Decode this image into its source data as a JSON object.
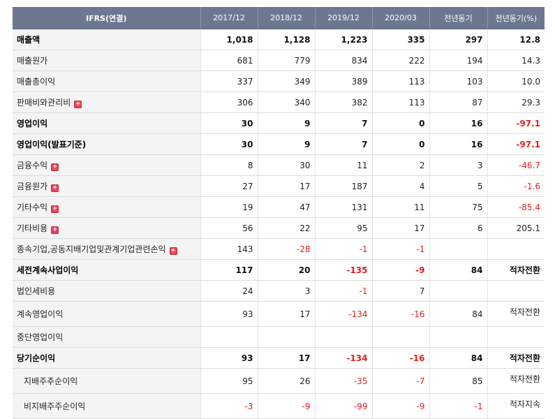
{
  "table": {
    "headers": [
      "IFRS(연결)",
      "2017/12",
      "2018/12",
      "2019/12",
      "2020/03",
      "전년동기",
      "전년동기(%)"
    ],
    "rows": [
      {
        "label": "매출액",
        "values": [
          "1,018",
          "1,128",
          "1,223",
          "335",
          "297",
          "12.8"
        ]
      },
      {
        "label": "매출원가",
        "values": [
          "681",
          "779",
          "834",
          "222",
          "194",
          "14.3"
        ]
      },
      {
        "label": "매출총이익",
        "values": [
          "337",
          "349",
          "389",
          "113",
          "103",
          "10.0"
        ]
      },
      {
        "label": "판매비와관리비",
        "values": [
          "306",
          "340",
          "382",
          "113",
          "87",
          "29.3"
        ]
      },
      {
        "label": "영업이익",
        "values": [
          "30",
          "9",
          "7",
          "0",
          "16",
          "-97.1"
        ]
      },
      {
        "label": "영업이익(발표기준)",
        "values": [
          "30",
          "9",
          "7",
          "0",
          "16",
          "-97.1"
        ]
      },
      {
        "label": "금융수익",
        "values": [
          "8",
          "30",
          "11",
          "2",
          "3",
          "-46.7"
        ]
      },
      {
        "label": "금융원가",
        "values": [
          "27",
          "17",
          "187",
          "4",
          "5",
          "-1.6"
        ]
      },
      {
        "label": "기타수익",
        "values": [
          "19",
          "47",
          "131",
          "11",
          "75",
          "-85.4"
        ]
      },
      {
        "label": "기타비용",
        "values": [
          "56",
          "22",
          "95",
          "17",
          "6",
          "205.1"
        ]
      },
      {
        "label": "종속기업,공동지배기업및관계기업관련손익",
        "values": [
          "143",
          "-28",
          "-1",
          "-1",
          "",
          ""
        ]
      },
      {
        "label": "세전계속사업이익",
        "values": [
          "117",
          "20",
          "-135",
          "-9",
          "84",
          "적자전환"
        ]
      },
      {
        "label": "법인세비용",
        "values": [
          "24",
          "3",
          "-1",
          "7",
          "",
          ""
        ]
      },
      {
        "label": "계속영업이익",
        "values": [
          "93",
          "17",
          "-134",
          "-16",
          "84",
          "적자전환"
        ]
      },
      {
        "label": "중단영업이익",
        "values": [
          "",
          "",
          "",
          "",
          "",
          ""
        ]
      },
      {
        "label": "당기순이익",
        "values": [
          "93",
          "17",
          "-134",
          "-16",
          "84",
          "적자전환"
        ]
      },
      {
        "label": "지배주주순이익",
        "values": [
          "95",
          "26",
          "-35",
          "-7",
          "85",
          "적자전환"
        ]
      },
      {
        "label": "비지배주주순이익",
        "values": [
          "-3",
          "-9",
          "-99",
          "-9",
          "-1",
          "적자지속"
        ]
      }
    ],
    "expand_glyph": "+"
  }
}
